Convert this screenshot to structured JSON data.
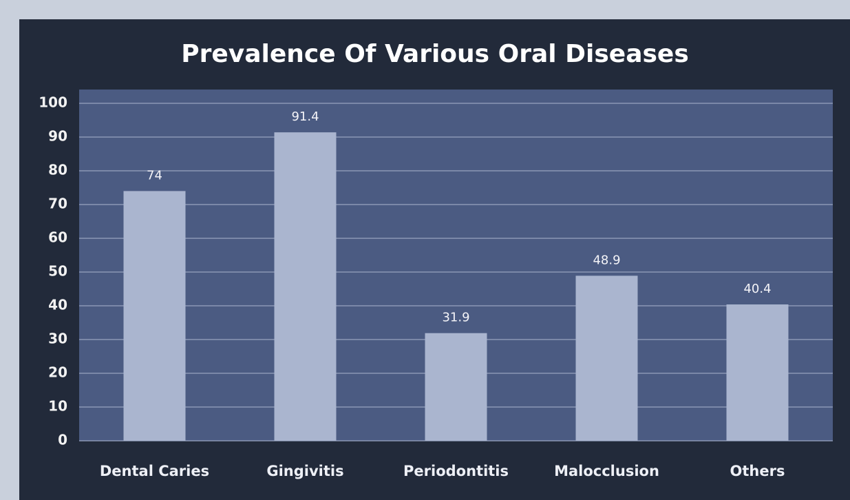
{
  "chart_data": {
    "type": "bar",
    "title": "Prevalence  Of Various Oral Diseases",
    "categories": [
      "Dental Caries",
      "Gingivitis",
      "Periodontitis",
      "Malocclusion",
      "Others"
    ],
    "values": [
      74,
      91.4,
      31.9,
      48.9,
      40.4
    ],
    "color": "#aab5cf",
    "ylim": [
      0,
      100
    ],
    "yticks": [
      0,
      10,
      20,
      30,
      40,
      50,
      60,
      70,
      80,
      90,
      100
    ],
    "grid": true
  }
}
